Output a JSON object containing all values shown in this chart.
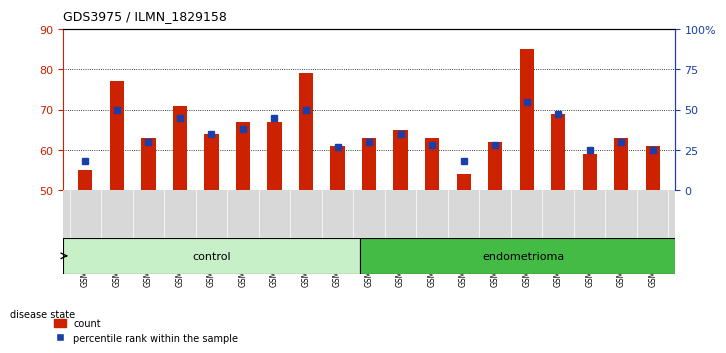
{
  "title": "GDS3975 / ILMN_1829158",
  "samples": [
    "GSM572752",
    "GSM572753",
    "GSM572754",
    "GSM572755",
    "GSM572756",
    "GSM572757",
    "GSM572761",
    "GSM572762",
    "GSM572764",
    "GSM572747",
    "GSM572748",
    "GSM572749",
    "GSM572750",
    "GSM572751",
    "GSM572758",
    "GSM572759",
    "GSM572760",
    "GSM572763",
    "GSM572765"
  ],
  "red_values": [
    55,
    77,
    63,
    71,
    64,
    67,
    67,
    79,
    61,
    63,
    65,
    63,
    54,
    62,
    85,
    69,
    59,
    63,
    61
  ],
  "blue_pct": [
    18,
    50,
    30,
    45,
    35,
    38,
    45,
    50,
    27,
    30,
    35,
    28,
    18,
    28,
    55,
    47,
    25,
    30,
    25
  ],
  "ylim_left": [
    50,
    90
  ],
  "ylim_right": [
    0,
    100
  ],
  "yticks_left": [
    50,
    60,
    70,
    80,
    90
  ],
  "yticks_right": [
    0,
    25,
    50,
    75,
    100
  ],
  "ytick_right_labels": [
    "0",
    "25",
    "50",
    "75",
    "100%"
  ],
  "control_count": 9,
  "endometrioma_count": 10,
  "bar_color": "#cc2200",
  "blue_color": "#1a3eaa",
  "control_color_light": "#c8f0c8",
  "control_color_dark": "#44bb44",
  "bg_color": "#d8d8d8",
  "bar_width": 0.45
}
